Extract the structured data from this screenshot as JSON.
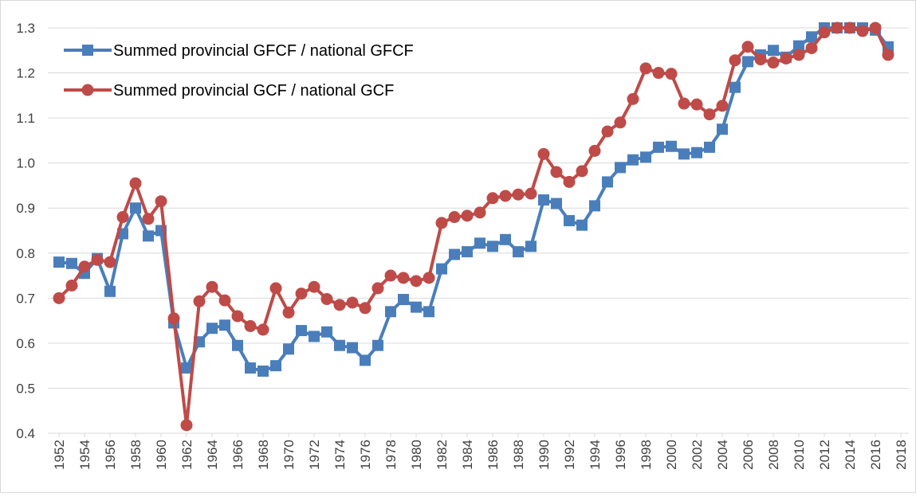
{
  "chart_data": {
    "type": "line",
    "x": [
      1952,
      1953,
      1954,
      1955,
      1956,
      1957,
      1958,
      1959,
      1960,
      1961,
      1962,
      1963,
      1964,
      1965,
      1966,
      1967,
      1968,
      1969,
      1970,
      1971,
      1972,
      1973,
      1974,
      1975,
      1976,
      1977,
      1978,
      1979,
      1980,
      1981,
      1982,
      1983,
      1984,
      1985,
      1986,
      1987,
      1988,
      1989,
      1990,
      1991,
      1992,
      1993,
      1994,
      1995,
      1996,
      1997,
      1998,
      1999,
      2000,
      2001,
      2002,
      2003,
      2004,
      2005,
      2006,
      2007,
      2008,
      2009,
      2010,
      2011,
      2012,
      2013,
      2014,
      2015,
      2016,
      2017
    ],
    "series": [
      {
        "name": "Summed provincial GFCF / national GFCF",
        "color": "#4a7ebb",
        "marker": "square",
        "values": [
          0.78,
          0.777,
          0.755,
          0.788,
          0.715,
          0.843,
          0.9,
          0.838,
          0.85,
          0.645,
          0.545,
          0.603,
          0.633,
          0.64,
          0.595,
          0.545,
          0.538,
          0.55,
          0.587,
          0.628,
          0.615,
          0.625,
          0.595,
          0.59,
          0.562,
          0.595,
          0.67,
          0.697,
          0.68,
          0.67,
          0.765,
          0.797,
          0.803,
          0.822,
          0.815,
          0.83,
          0.803,
          0.815,
          0.918,
          0.91,
          0.872,
          0.862,
          0.905,
          0.958,
          0.99,
          1.007,
          1.013,
          1.035,
          1.037,
          1.02,
          1.023,
          1.035,
          1.075,
          1.168,
          1.225,
          1.24,
          1.25,
          1.235,
          1.26,
          1.28,
          1.3,
          1.3,
          1.3,
          1.3,
          1.295,
          1.258
        ]
      },
      {
        "name": "Summed provincial GCF / national GCF",
        "color": "#be4b48",
        "marker": "circle",
        "values": [
          0.7,
          0.728,
          0.77,
          0.785,
          0.78,
          0.88,
          0.955,
          0.876,
          0.915,
          0.655,
          0.418,
          0.693,
          0.725,
          0.695,
          0.66,
          0.638,
          0.63,
          0.722,
          0.668,
          0.71,
          0.725,
          0.698,
          0.685,
          0.69,
          0.678,
          0.722,
          0.75,
          0.745,
          0.738,
          0.745,
          0.867,
          0.88,
          0.883,
          0.89,
          0.922,
          0.927,
          0.93,
          0.932,
          1.02,
          0.98,
          0.958,
          0.982,
          1.027,
          1.07,
          1.09,
          1.142,
          1.21,
          1.2,
          1.198,
          1.132,
          1.13,
          1.108,
          1.127,
          1.228,
          1.258,
          1.23,
          1.223,
          1.232,
          1.24,
          1.255,
          1.29,
          1.3,
          1.3,
          1.293,
          1.3,
          1.24
        ]
      }
    ],
    "xlim": [
      1952,
      2018
    ],
    "xticks": [
      1952,
      1954,
      1956,
      1958,
      1960,
      1962,
      1964,
      1966,
      1968,
      1970,
      1972,
      1974,
      1976,
      1978,
      1980,
      1982,
      1984,
      1986,
      1988,
      1990,
      1992,
      1994,
      1996,
      1998,
      2000,
      2002,
      2004,
      2006,
      2008,
      2010,
      2012,
      2014,
      2016,
      2018
    ],
    "ylim": [
      0.4,
      1.3
    ],
    "yticks": [
      0.4,
      0.5,
      0.6,
      0.7,
      0.8,
      0.9,
      {
        "value": 1,
        "label": "1.0"
      },
      1.1,
      1.2,
      1.3
    ],
    "grid": true,
    "legend": "top-left"
  }
}
